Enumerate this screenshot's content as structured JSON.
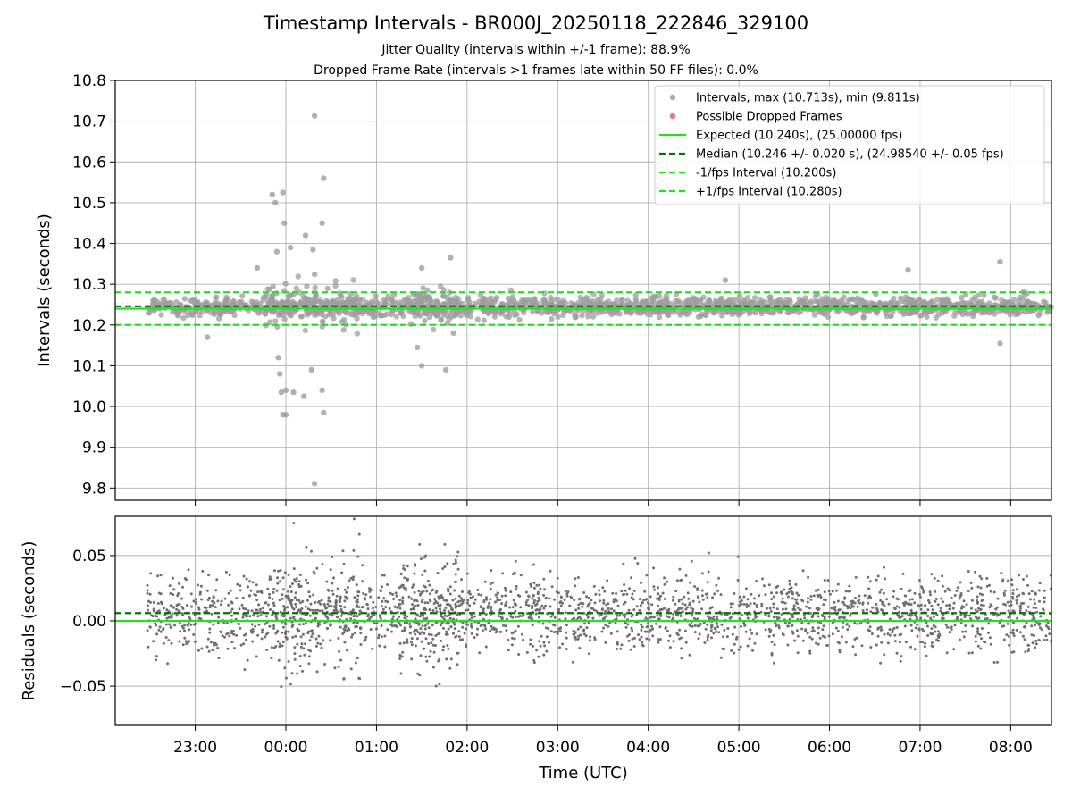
{
  "figure": {
    "title": "Timestamp Intervals - BR000J_20250118_222846_329100",
    "subtitle_1": "Jitter Quality (intervals within +/-1 frame): 88.9%",
    "subtitle_2": "Dropped Frame Rate (intervals >1 frames late within 50 FF files): 0.0%"
  },
  "chart_data": [
    {
      "type": "scatter",
      "panel": "top",
      "ylabel": "Intervals (seconds)",
      "xlabel": "",
      "ylim": [
        9.77,
        10.8
      ],
      "yticks": [
        "9.8",
        "9.9",
        "10.0",
        "10.1",
        "10.2",
        "10.3",
        "10.4",
        "10.5",
        "10.6",
        "10.7",
        "10.8"
      ],
      "grid": true,
      "legend_position": "top-right",
      "x_axis": {
        "type": "time",
        "start": "2025-01-18T22:07",
        "end": "2025-01-19T08:27",
        "tick_labels": [
          "23:00",
          "00:00",
          "01:00",
          "02:00",
          "03:00",
          "04:00",
          "05:00",
          "06:00",
          "07:00",
          "08:00"
        ]
      },
      "legend": [
        {
          "label": "Intervals, max (10.713s), min (9.811s)",
          "marker": "dot",
          "color": "#9e9e9e"
        },
        {
          "label": "Possible Dropped Frames",
          "marker": "dot",
          "color": "#f06060"
        },
        {
          "label": "Expected (10.240s), (25.00000 fps)",
          "marker": "solid",
          "color": "#22e022"
        },
        {
          "label": "Median (10.246 +/- 0.020 s), (24.98540 +/- 0.05 fps)",
          "marker": "dashed",
          "color": "#0a6e0a"
        },
        {
          "label": "-1/fps Interval (10.200s)",
          "marker": "dashed",
          "color": "#22e022"
        },
        {
          "label": "+1/fps Interval (10.280s)",
          "marker": "dashed",
          "color": "#22e022"
        }
      ],
      "reference_lines": {
        "expected": 10.24,
        "median": 10.246,
        "minus_one_fps": 10.2,
        "plus_one_fps": 10.28
      },
      "series": [
        {
          "kind": "interval-samples",
          "sample_times": [
            "2025-01-18T22:28",
            "2025-01-19T08:27"
          ],
          "typical_range": [
            10.2,
            10.29
          ]
        },
        {
          "kind": "outliers",
          "points": [
            [
              "2025-01-18T23:51",
              10.52
            ],
            [
              "2025-01-18T23:53",
              10.5
            ],
            [
              "2025-01-18T23:58",
              10.525
            ],
            [
              "2025-01-18T23:59",
              10.45
            ],
            [
              "2025-01-19T00:13",
              10.42
            ],
            [
              "2025-01-19T00:24",
              10.45
            ],
            [
              "2025-01-19T00:25",
              10.56
            ],
            [
              "2025-01-19T00:19",
              10.713
            ],
            [
              "2025-01-18T23:41",
              10.34
            ],
            [
              "2025-01-18T23:54",
              10.38
            ],
            [
              "2025-01-19T00:03",
              10.39
            ],
            [
              "2025-01-19T00:18",
              10.385
            ],
            [
              "2025-01-18T23:55",
              10.12
            ],
            [
              "2025-01-18T23:56",
              10.08
            ],
            [
              "2025-01-18T23:57",
              10.035
            ],
            [
              "2025-01-19T00:00",
              10.04
            ],
            [
              "2025-01-19T00:05",
              10.035
            ],
            [
              "2025-01-19T00:12",
              10.025
            ],
            [
              "2025-01-19T00:17",
              10.09
            ],
            [
              "2025-01-19T00:24",
              10.04
            ],
            [
              "2025-01-18T23:58",
              9.98
            ],
            [
              "2025-01-19T00:00",
              9.98
            ],
            [
              "2025-01-19T00:25",
              9.985
            ],
            [
              "2025-01-19T00:19",
              9.811
            ],
            [
              "2025-01-18T23:08",
              10.17
            ],
            [
              "2025-01-19T01:30",
              10.34
            ],
            [
              "2025-01-19T01:49",
              10.365
            ],
            [
              "2025-01-19T01:27",
              10.145
            ],
            [
              "2025-01-19T01:30",
              10.1
            ],
            [
              "2025-01-19T01:46",
              10.09
            ],
            [
              "2025-01-19T01:51",
              10.18
            ],
            [
              "2025-01-19T07:53",
              10.355
            ],
            [
              "2025-01-19T07:53",
              10.155
            ],
            [
              "2025-01-19T06:52",
              10.335
            ],
            [
              "2025-01-19T04:51",
              10.31
            ]
          ]
        }
      ]
    },
    {
      "type": "scatter",
      "panel": "bottom",
      "ylabel": "Residuals (seconds)",
      "xlabel": "Time (UTC)",
      "ylim": [
        -0.08,
        0.08
      ],
      "yticks": [
        "−0.05",
        "0.00",
        "0.05"
      ],
      "grid": true,
      "x_axis": {
        "type": "time",
        "start": "2025-01-18T22:07",
        "end": "2025-01-19T08:27",
        "tick_labels": [
          "23:00",
          "00:00",
          "01:00",
          "02:00",
          "03:00",
          "04:00",
          "05:00",
          "06:00",
          "07:00",
          "08:00"
        ]
      },
      "reference_lines": {
        "expected": 0.0,
        "median": 0.006
      },
      "series": [
        {
          "kind": "residual-samples",
          "sample_times": [
            "2025-01-18T22:28",
            "2025-01-19T08:27"
          ],
          "typical_range": [
            -0.045,
            0.055
          ]
        }
      ]
    }
  ],
  "colors": {
    "points": "#9e9e9e",
    "residual_points": "#707070",
    "expected": "#22e022",
    "median": "#0a6e0a",
    "grid": "#b0b0b0"
  }
}
